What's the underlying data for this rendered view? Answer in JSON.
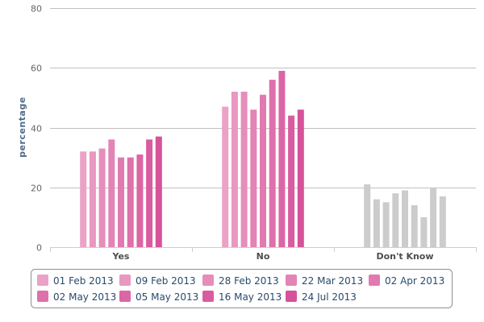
{
  "chart_data": {
    "type": "bar",
    "ylabel": "percentage",
    "xlabel": "",
    "ylim": [
      0,
      80
    ],
    "yticks": [
      0,
      20,
      40,
      60,
      80
    ],
    "grid": true,
    "legend_position": "bottom",
    "categories": [
      "Yes",
      "No",
      "Don't Know"
    ],
    "series": [
      {
        "name": "01 Feb 2013",
        "color": "#eaa2c6",
        "values": [
          32,
          47,
          21
        ]
      },
      {
        "name": "09 Feb 2013",
        "color": "#e898c1",
        "values": [
          32,
          52,
          16
        ]
      },
      {
        "name": "28 Feb 2013",
        "color": "#e58ebb",
        "values": [
          33,
          52,
          15
        ]
      },
      {
        "name": "22 Mar 2013",
        "color": "#e384b6",
        "values": [
          36,
          46,
          18
        ]
      },
      {
        "name": "02 Apr 2013",
        "color": "#e07ab0",
        "values": [
          30,
          51,
          19
        ]
      },
      {
        "name": "02 May 2013",
        "color": "#de70ab",
        "values": [
          30,
          56,
          14
        ]
      },
      {
        "name": "05 May 2013",
        "color": "#db66a5",
        "values": [
          31,
          59,
          10
        ]
      },
      {
        "name": "16 May 2013",
        "color": "#d95ca0",
        "values": [
          36,
          44,
          20
        ]
      },
      {
        "name": "24 Jul 2013",
        "color": "#d6529a",
        "values": [
          37,
          46,
          17
        ]
      }
    ],
    "dont_know_color": "#cccccc"
  }
}
